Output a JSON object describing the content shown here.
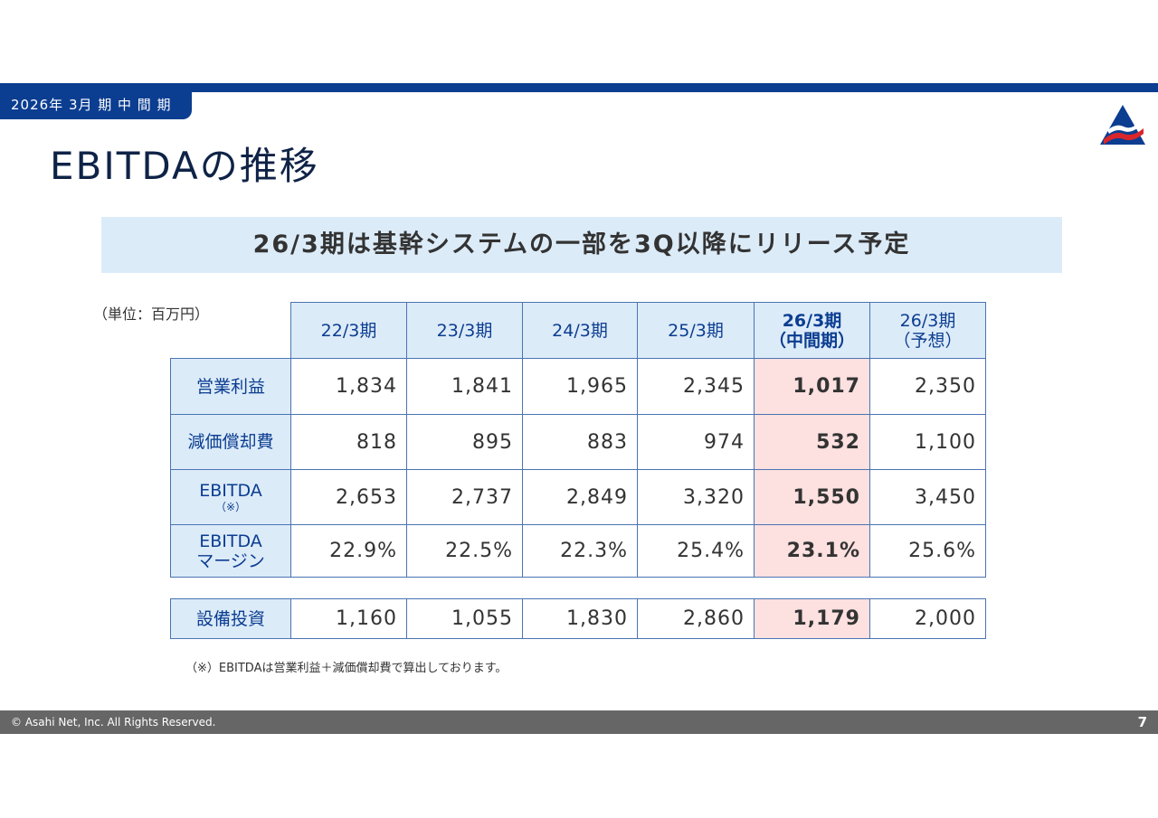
{
  "period_tab": "2026年 3月 期 中 間 期",
  "title": "EBITDAの推移",
  "banner": "26/3期は基幹システムの一部を3Q以降にリリース予定",
  "unit": "（単位：百万円）",
  "columns": [
    {
      "line1": "22/3期",
      "line2": ""
    },
    {
      "line1": "23/3期",
      "line2": ""
    },
    {
      "line1": "24/3期",
      "line2": ""
    },
    {
      "line1": "25/3期",
      "line2": ""
    },
    {
      "line1": "26/3期",
      "line2": "（中間期）"
    },
    {
      "line1": "26/3期",
      "line2": "（予想）"
    }
  ],
  "rows": [
    {
      "label1": "営業利益",
      "label2": "",
      "values": [
        "1,834",
        "1,841",
        "1,965",
        "2,345",
        "1,017",
        "2,350"
      ]
    },
    {
      "label1": "減価償却費",
      "label2": "",
      "values": [
        "818",
        "895",
        "883",
        "974",
        "532",
        "1,100"
      ]
    },
    {
      "label1": "EBITDA",
      "label2": "（※）",
      "values": [
        "2,653",
        "2,737",
        "2,849",
        "3,320",
        "1,550",
        "3,450"
      ]
    },
    {
      "label1": "EBITDA",
      "label2": "マージン",
      "values": [
        "22.9%",
        "22.5%",
        "22.3%",
        "25.4%",
        "23.1%",
        "25.6%"
      ]
    }
  ],
  "capex": {
    "label": "設備投資",
    "values": [
      "1,160",
      "1,055",
      "1,830",
      "2,860",
      "1,179",
      "2,000"
    ]
  },
  "note": "（※）EBITDAは営業利益＋減価償却費で算出しております。",
  "footer": {
    "copyright": "© Asahi Net, Inc. All Rights Reserved.",
    "page": "7"
  },
  "colors": {
    "brand": "#0b3d91",
    "header_bg": "#dcebf8",
    "highlight": "#fde0e0",
    "footer": "#666666"
  }
}
